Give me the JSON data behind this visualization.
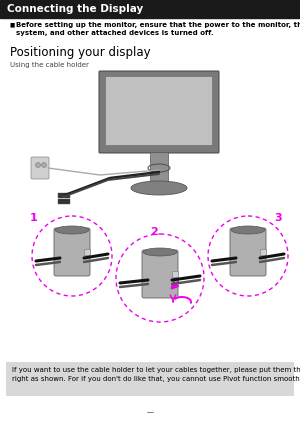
{
  "bg_color": "#ffffff",
  "header_bg": "#1a1a1a",
  "header_text": "Connecting the Display",
  "header_text_color": "#ffffff",
  "header_fontsize": 7.5,
  "bullet_text": "Before setting up the monitor, ensure that the power to the monitor, the computer\nsystem, and other attached devices is turned off.",
  "bullet_fontsize": 5.0,
  "section_title": "Positioning your display",
  "section_fontsize": 8.5,
  "sub_label": "Using the cable holder",
  "sub_fontsize": 5.0,
  "footer_bg": "#d8d8d8",
  "footer_text": "If you want to use the cable holder to let your cables together, please put them through\nright as shown. For if you don't do like that, you cannot use Pivot function smoothly.",
  "footer_fontsize": 5.0,
  "page_num": "—",
  "page_num_fontsize": 5,
  "step_colors": [
    "#ee00ee",
    "#ee00ee",
    "#ee00ee"
  ],
  "step_labels": [
    "1",
    "2",
    "3"
  ],
  "cyl_face": "#b0b0b0",
  "cyl_dark": "#787878",
  "cyl_shadow": "#909090"
}
